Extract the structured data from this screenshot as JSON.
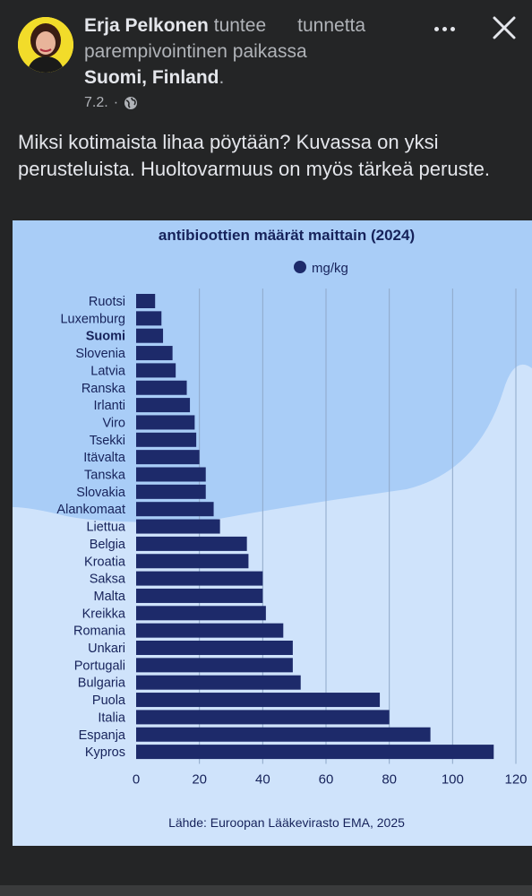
{
  "post": {
    "author": "Erja Pelkonen",
    "feeling_prefix": "tuntee",
    "feeling_word": "tunnetta",
    "feeling_rest": "parempivointinen paikassa",
    "location": "Suomi, Finland",
    "date": "7.2.",
    "separator": "·",
    "text": "Miksi kotimaista lihaa pöytään? Kuvassa on yksi perusteluista. Huoltovarmuus on myös tärkeä peruste.",
    "icons": {
      "more": "more-icon",
      "close": "close-icon",
      "privacy": "globe-icon"
    }
  },
  "chart_data": {
    "type": "bar",
    "orientation": "horizontal",
    "title": "antibioottien määrät maittain (2024)",
    "legend": {
      "label": "mg/kg",
      "placement": "top-right"
    },
    "categories": [
      "Ruotsi",
      "Luxemburg",
      "Suomi",
      "Slovenia",
      "Latvia",
      "Ranska",
      "Irlanti",
      "Viro",
      "Tsekki",
      "Itävalta",
      "Tanska",
      "Slovakia",
      "Alankomaat",
      "Liettua",
      "Belgia",
      "Kroatia",
      "Saksa",
      "Malta",
      "Kreikka",
      "Romania",
      "Unkari",
      "Portugali",
      "Bulgaria",
      "Puola",
      "Italia",
      "Espanja",
      "Kypros"
    ],
    "highlight": "Suomi",
    "values": [
      6,
      8,
      8.5,
      11.5,
      12.5,
      16,
      17,
      18.5,
      19,
      20,
      22,
      22,
      24.5,
      26.5,
      35,
      35.5,
      40,
      40,
      41,
      46.5,
      49.5,
      49.5,
      52,
      77,
      80,
      93,
      113
    ],
    "xticks": [
      0,
      20,
      40,
      60,
      80,
      100,
      120
    ],
    "xlim": [
      0,
      120
    ],
    "grid": true,
    "source": "Lähde: Euroopan Lääkevirasto EMA, 2025",
    "colors": {
      "bar": "#1d2a6a",
      "background": "#cfe3fb",
      "wave": "#a9cdf7",
      "text": "#16225a",
      "grid": "#8fa8c8"
    }
  }
}
